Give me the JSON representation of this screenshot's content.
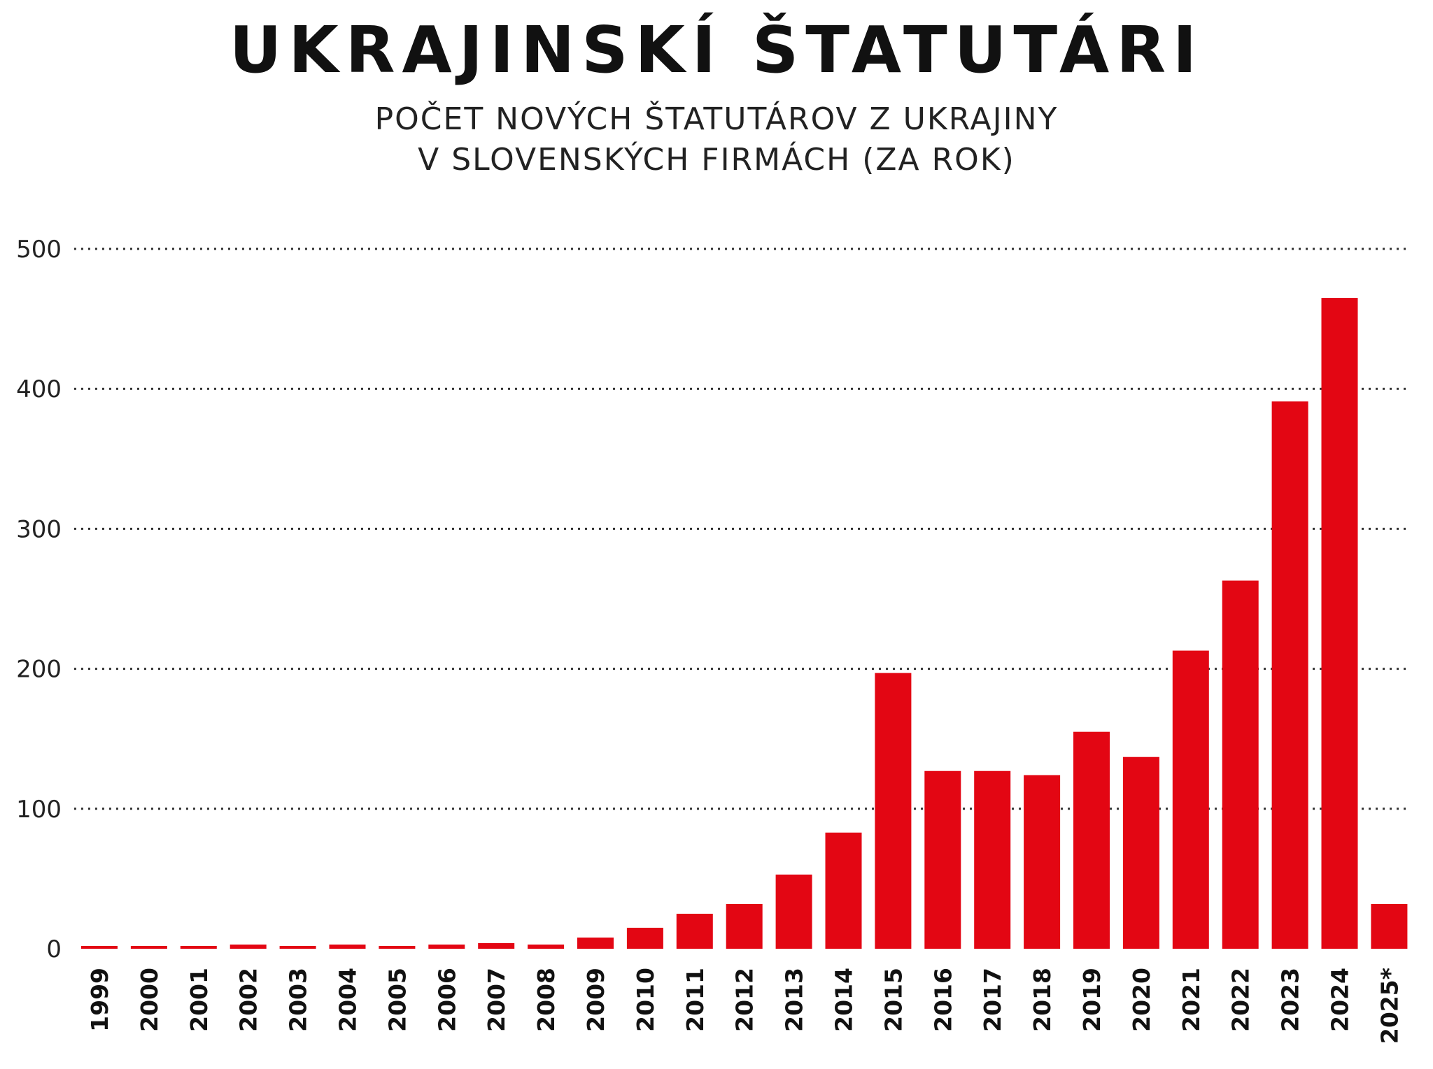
{
  "chart_data": {
    "type": "bar",
    "title": "UKRAJINSKÍ ŠTATUTÁRI",
    "subtitle_lines": [
      "POČET NOVÝCH ŠTATUTÁROV Z UKRAJINY",
      "V SLOVENSKÝCH FIRMÁCH (ZA ROK)"
    ],
    "xlabel": "",
    "ylabel": "",
    "ylim": [
      0,
      500
    ],
    "yticks": [
      "0",
      "100",
      "200",
      "300",
      "400",
      "500"
    ],
    "grid": "dotted horizontal",
    "categories": [
      "1999",
      "2000",
      "2001",
      "2002",
      "2003",
      "2004",
      "2005",
      "2006",
      "2007",
      "2008",
      "2009",
      "2010",
      "2011",
      "2012",
      "2013",
      "2014",
      "2015",
      "2016",
      "2017",
      "2018",
      "2019",
      "2020",
      "2021",
      "2022",
      "2023",
      "2024",
      "2025*"
    ],
    "values": [
      2,
      2,
      2,
      3,
      2,
      3,
      2,
      3,
      4,
      3,
      8,
      15,
      25,
      32,
      53,
      83,
      197,
      127,
      127,
      124,
      155,
      137,
      213,
      263,
      391,
      465,
      32
    ],
    "bar_color": "#e30613"
  }
}
